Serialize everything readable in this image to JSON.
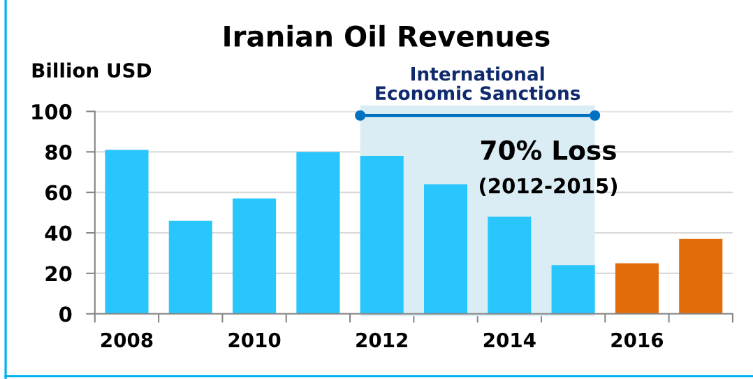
{
  "chart_data": {
    "type": "bar",
    "title": "Iranian Oil Revenues",
    "ylabel": "Billion USD",
    "x": [
      2008,
      2009,
      2010,
      2011,
      2012,
      2013,
      2014,
      2015,
      2016,
      2017
    ],
    "values": [
      81,
      46,
      57,
      80,
      78,
      64,
      48,
      24,
      25,
      37
    ],
    "colors": [
      "#28c6fc",
      "#28c6fc",
      "#28c6fc",
      "#28c6fc",
      "#28c6fc",
      "#28c6fc",
      "#28c6fc",
      "#28c6fc",
      "#e36c0a",
      "#e36c0a"
    ],
    "xlim": [
      2007.5,
      2017.5
    ],
    "xticks": [
      {
        "value": 2007.5,
        "label": null
      },
      2008,
      {
        "value": 2008.5,
        "label": null
      },
      {
        "value": 2009.5,
        "label": null
      },
      2010,
      {
        "value": 2010.5,
        "label": null
      },
      {
        "value": 2011.5,
        "label": null
      },
      2012,
      {
        "value": 2012.5,
        "label": null
      },
      {
        "value": 2013.5,
        "label": null
      },
      2014,
      {
        "value": 2014.5,
        "label": null
      },
      {
        "value": 2015.5,
        "label": null
      },
      2016,
      {
        "value": 2016.5,
        "label": null
      },
      {
        "value": 2017.5,
        "label": null
      }
    ],
    "ylim": [
      0,
      100
    ],
    "yticks": [
      0,
      20,
      40,
      60,
      80,
      100
    ],
    "grid": "y",
    "bands": [
      {
        "axis": "x",
        "from": 2011.66,
        "to": 2015.34,
        "label": "International\nEconomic Sanctions",
        "color": "#dbedf4"
      }
    ],
    "annotations": [
      "70% Loss",
      "(2012-2015)"
    ]
  }
}
